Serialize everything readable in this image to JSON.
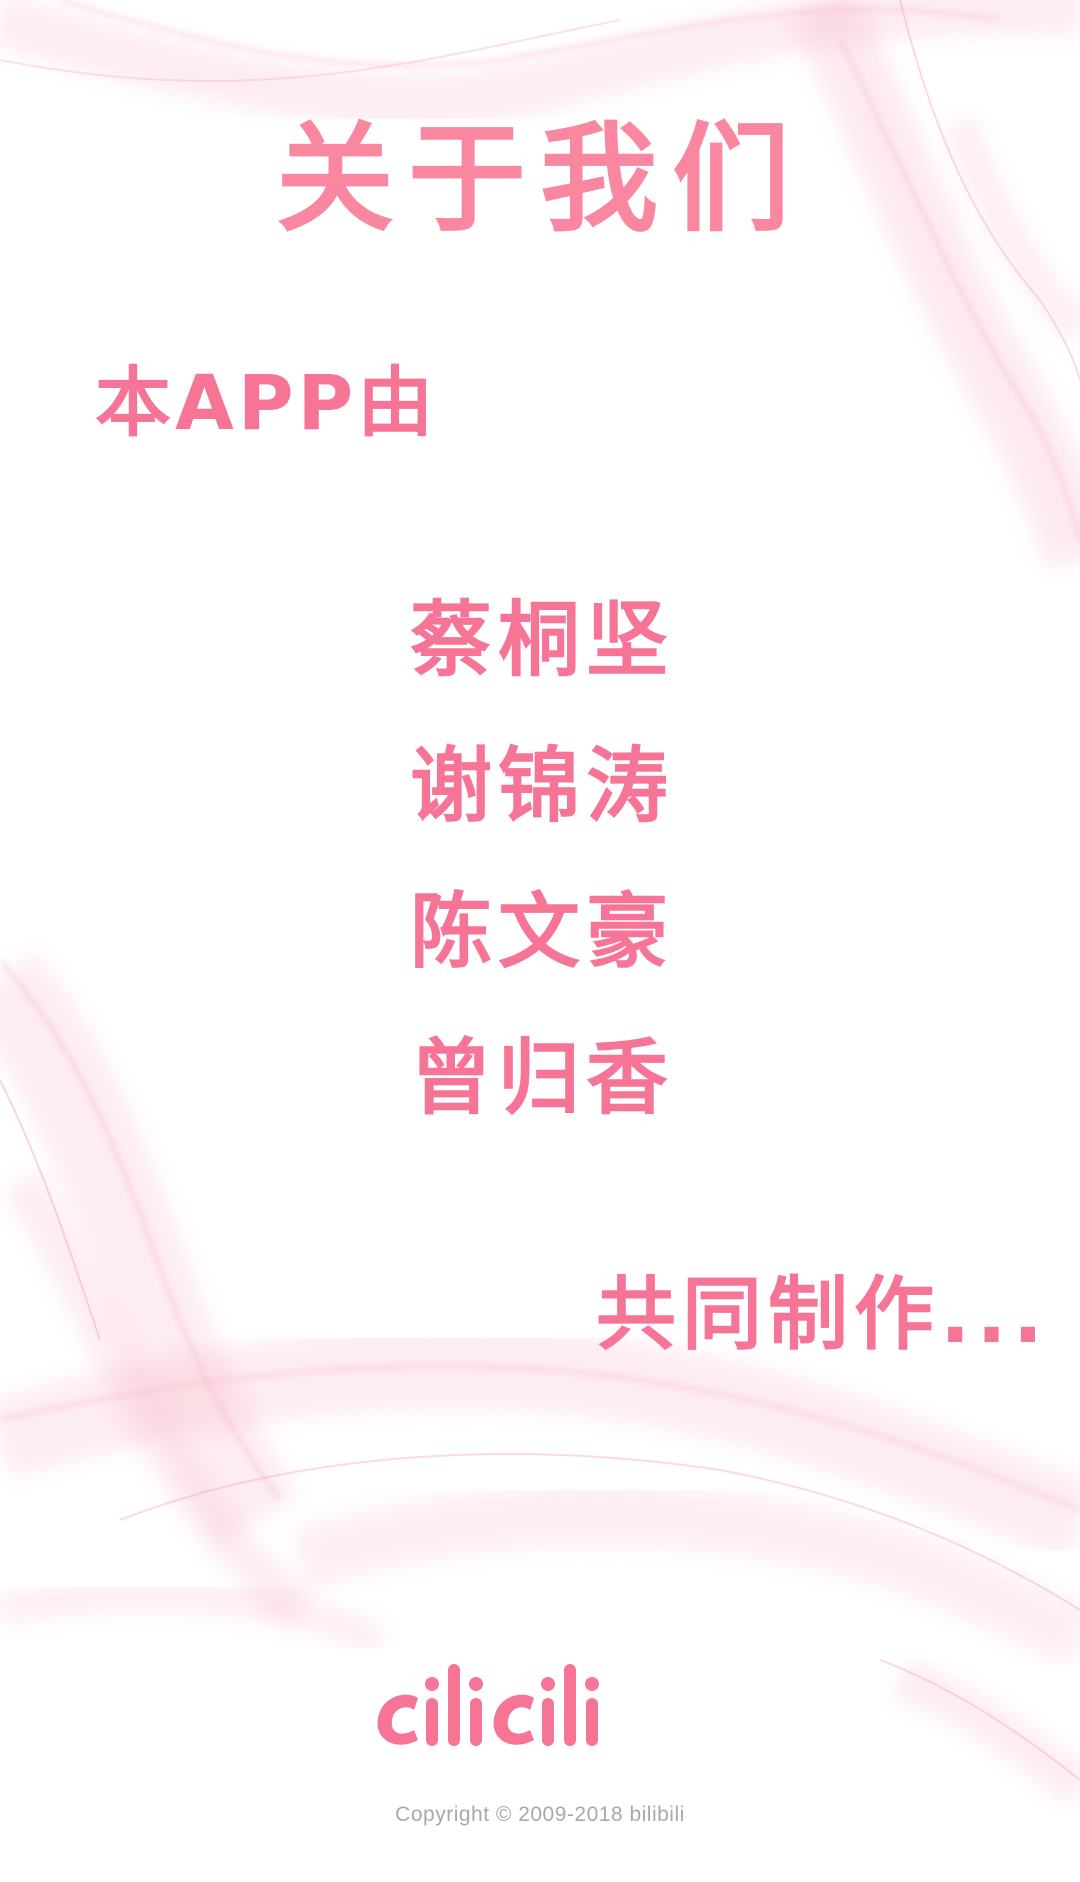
{
  "page": {
    "title": "关于我们",
    "intro": "本APP由",
    "authors": [
      "蔡桐坚",
      "谢锦涛",
      "陈文豪",
      "曾归香"
    ],
    "outro": "共同制作...",
    "logo_text": "cilicili",
    "copyright": "Copyright © 2009-2018 bilibili"
  },
  "colors": {
    "accent": "#f67596",
    "title": "#f8879f",
    "smoke": "#f7b4c6",
    "copyright": "#a9a9a9",
    "background": "#ffffff"
  }
}
